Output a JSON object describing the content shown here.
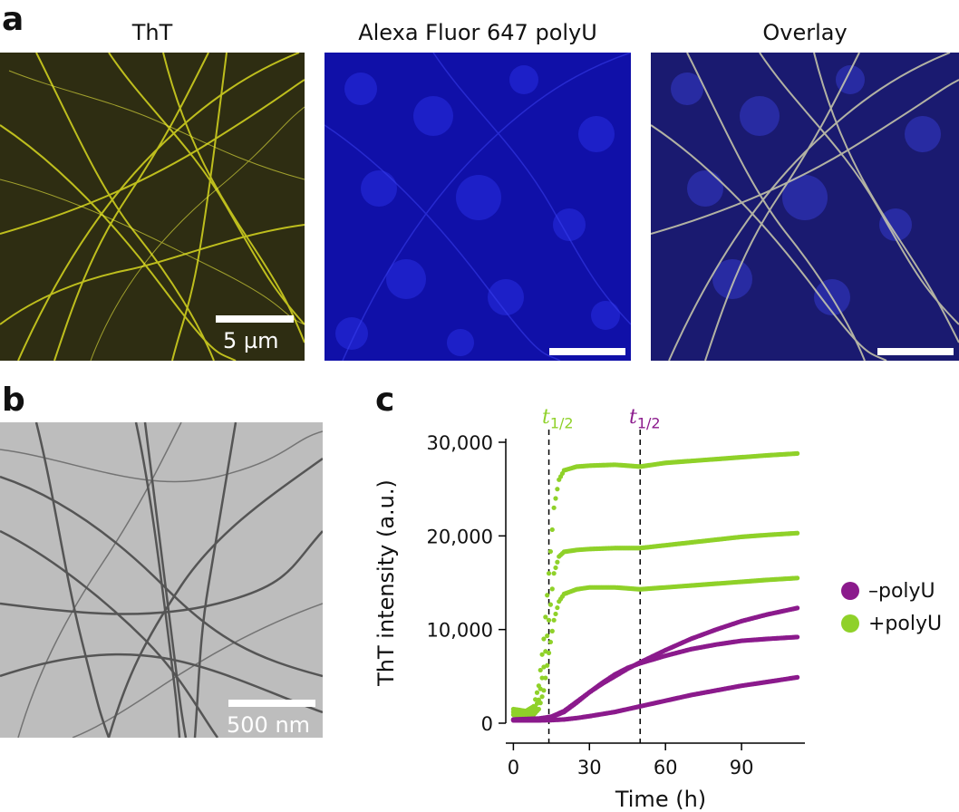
{
  "panel_a": {
    "letter": "a",
    "images": [
      {
        "title": "ThT",
        "scale_label": "5 µm",
        "color": "#d8d820"
      },
      {
        "title": "Alexa Fluor 647 polyU",
        "scale_label": "",
        "color": "#2a2ae8"
      },
      {
        "title": "Overlay",
        "scale_label": "",
        "color": "#c8c8a0"
      }
    ]
  },
  "panel_b": {
    "letter": "b",
    "scale_label": "500 nm"
  },
  "panel_c": {
    "letter": "c",
    "t_half_base": "t",
    "t_half_sub": "1/2",
    "legend": [
      {
        "label": "–polyU",
        "color": "#8b1a8c"
      },
      {
        "label": "+polyU",
        "color": "#8fd129"
      }
    ]
  },
  "chart_data": {
    "type": "scatter",
    "title": "",
    "xlabel": "Time (h)",
    "ylabel": "ThT intensity (a.u.)",
    "xlim": [
      -3,
      115
    ],
    "ylim": [
      0,
      30000
    ],
    "xticks": [
      0,
      30,
      60,
      90
    ],
    "yticks": [
      0,
      10000,
      20000,
      30000
    ],
    "xtick_labels": [
      "0",
      "30",
      "60",
      "90"
    ],
    "ytick_labels": [
      "0",
      "10,000",
      "20,000",
      "30,000"
    ],
    "vlines": [
      {
        "x": 14,
        "label": "t1/2",
        "color": "#8fd129"
      },
      {
        "x": 50,
        "label": "t1/2",
        "color": "#8b1a8c"
      }
    ],
    "series": [
      {
        "name": "+polyU",
        "color": "#8fd129",
        "x": [
          0,
          5,
          8,
          10,
          12,
          14,
          16,
          18,
          20,
          25,
          30,
          40,
          50,
          60,
          70,
          80,
          90,
          100,
          112
        ],
        "y": [
          1500,
          1300,
          1800,
          4000,
          9000,
          16000,
          23000,
          26000,
          27000,
          27400,
          27500,
          27600,
          27400,
          27800,
          28000,
          28200,
          28400,
          28600,
          28800
        ]
      },
      {
        "name": "+polyU",
        "color": "#8fd129",
        "x": [
          0,
          5,
          8,
          10,
          12,
          14,
          16,
          18,
          20,
          25,
          30,
          40,
          50,
          60,
          70,
          80,
          90,
          100,
          112
        ],
        "y": [
          1200,
          1000,
          1300,
          2500,
          6000,
          11000,
          16000,
          17800,
          18300,
          18500,
          18600,
          18700,
          18700,
          19000,
          19300,
          19600,
          19900,
          20100,
          20300
        ]
      },
      {
        "name": "+polyU",
        "color": "#8fd129",
        "x": [
          0,
          5,
          8,
          10,
          12,
          14,
          16,
          18,
          20,
          25,
          30,
          40,
          50,
          60,
          70,
          80,
          90,
          100,
          112
        ],
        "y": [
          900,
          700,
          900,
          1500,
          3500,
          7500,
          11000,
          13000,
          13800,
          14300,
          14500,
          14500,
          14300,
          14500,
          14700,
          14900,
          15100,
          15300,
          15500
        ]
      },
      {
        "name": "–polyU",
        "color": "#8b1a8c",
        "x": [
          0,
          10,
          15,
          20,
          25,
          30,
          35,
          40,
          45,
          50,
          60,
          70,
          80,
          90,
          100,
          112
        ],
        "y": [
          400,
          500,
          700,
          1300,
          2300,
          3300,
          4200,
          5000,
          5800,
          6500,
          7800,
          9000,
          10000,
          10900,
          11600,
          12300
        ]
      },
      {
        "name": "–polyU",
        "color": "#8b1a8c",
        "x": [
          0,
          10,
          15,
          20,
          25,
          30,
          35,
          40,
          45,
          50,
          60,
          70,
          80,
          90,
          100,
          112
        ],
        "y": [
          350,
          450,
          650,
          1200,
          2200,
          3300,
          4300,
          5200,
          5900,
          6400,
          7200,
          7900,
          8400,
          8800,
          9000,
          9200
        ]
      },
      {
        "name": "–polyU",
        "color": "#8b1a8c",
        "x": [
          0,
          10,
          15,
          20,
          25,
          30,
          40,
          50,
          60,
          70,
          80,
          90,
          100,
          112
        ],
        "y": [
          300,
          300,
          330,
          400,
          550,
          750,
          1200,
          1800,
          2400,
          3000,
          3500,
          4000,
          4400,
          4900
        ]
      }
    ]
  }
}
